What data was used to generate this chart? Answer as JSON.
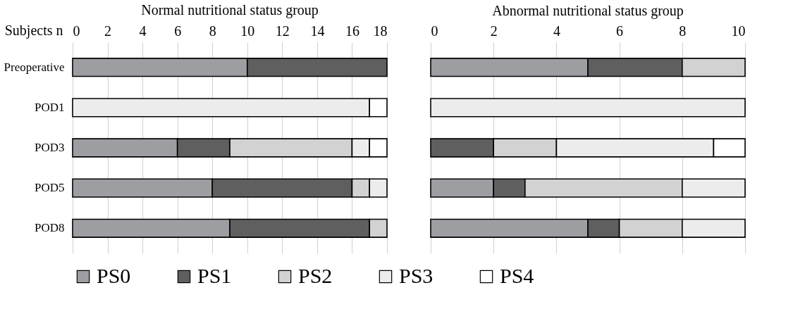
{
  "chart_data": [
    {
      "type": "bar",
      "orientation": "horizontal",
      "stacked": true,
      "title": "Normal nutritional status group",
      "xlabel": "Subjects n",
      "categories": [
        "Preoperative",
        "POD1",
        "POD3",
        "POD5",
        "POD8"
      ],
      "xlim": [
        0,
        18
      ],
      "xticks": [
        0,
        2,
        4,
        6,
        8,
        10,
        12,
        14,
        16,
        18
      ],
      "grid": "x",
      "legend": "bottom",
      "series": [
        {
          "name": "PS0",
          "color": "#9d9ea2",
          "values": [
            10,
            0,
            6,
            8,
            9
          ]
        },
        {
          "name": "PS1",
          "color": "#5f5f5f",
          "values": [
            8,
            0,
            3,
            8,
            8
          ]
        },
        {
          "name": "PS2",
          "color": "#d2d2d2",
          "values": [
            0,
            0,
            7,
            1,
            1
          ]
        },
        {
          "name": "PS3",
          "color": "#ececec",
          "values": [
            0,
            17,
            1,
            1,
            0
          ]
        },
        {
          "name": "PS4",
          "color": "#ffffff",
          "values": [
            0,
            1,
            1,
            0,
            0
          ]
        }
      ]
    },
    {
      "type": "bar",
      "orientation": "horizontal",
      "stacked": true,
      "title": "Abnormal nutritional status group",
      "categories": [
        null,
        null,
        null,
        null,
        null
      ],
      "xlim": [
        0,
        10
      ],
      "xticks": [
        0,
        2,
        4,
        6,
        8,
        10
      ],
      "grid": "x",
      "legend": "bottom",
      "tick_labels": "x",
      "series": [
        {
          "name": "PS0",
          "color": "#9d9ea2",
          "values": [
            5,
            0,
            0,
            2,
            5
          ]
        },
        {
          "name": "PS1",
          "color": "#5f5f5f",
          "values": [
            3,
            0,
            2,
            1,
            1
          ]
        },
        {
          "name": "PS2",
          "color": "#d2d2d2",
          "values": [
            2,
            0,
            2,
            5,
            2
          ]
        },
        {
          "name": "PS3",
          "color": "#ececec",
          "values": [
            0,
            10,
            5,
            2,
            2
          ]
        },
        {
          "name": "PS4",
          "color": "#ffffff",
          "values": [
            0,
            0,
            1,
            0,
            0
          ]
        }
      ]
    }
  ]
}
